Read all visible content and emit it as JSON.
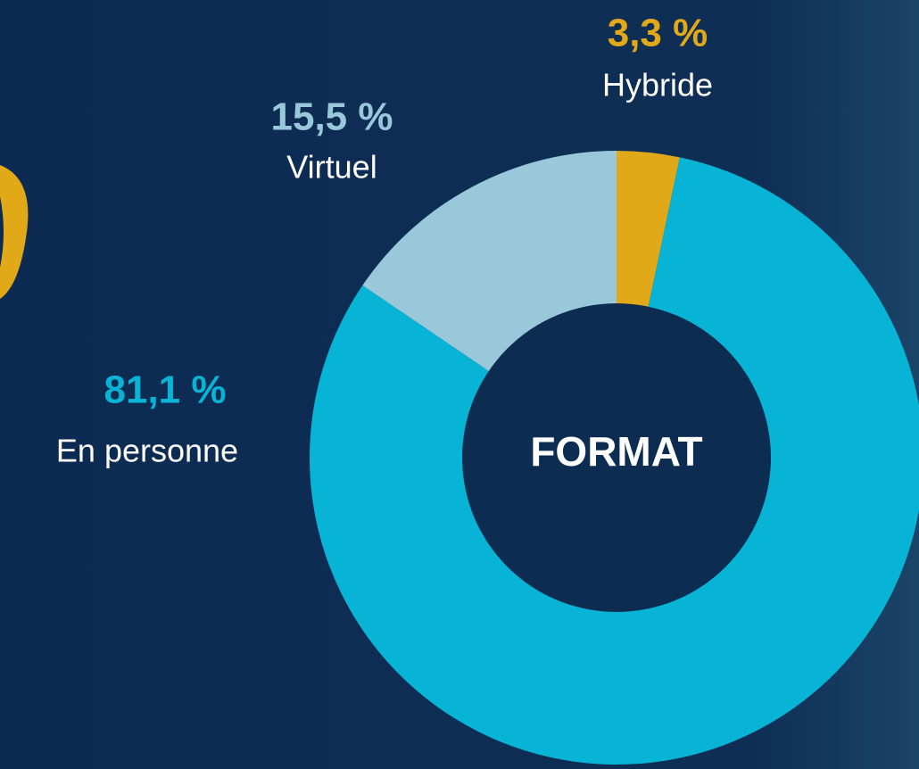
{
  "chart_data": {
    "type": "pie",
    "center_label": "FORMAT",
    "categories": [
      "Hybride",
      "En personne",
      "Virtuel"
    ],
    "values": [
      3.3,
      81.1,
      15.5
    ],
    "value_labels": [
      "3,3 %",
      "81,1 %",
      "15,5 %"
    ],
    "colors": [
      "#e1a817",
      "#07b4d6",
      "#98c8da"
    ]
  }
}
